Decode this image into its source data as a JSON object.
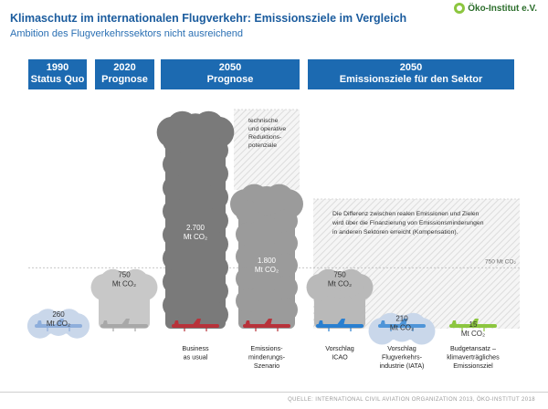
{
  "header": {
    "title": "Klimaschutz im internationalen Flugverkehr: Emissionsziele im Vergleich",
    "subtitle": "Ambition des Flugverkehrssektors nicht ausreichend",
    "logo_text": "Öko-Institut e.V."
  },
  "column_headers": [
    {
      "line1": "1990",
      "line2": "Status Quo"
    },
    {
      "line1": "2020",
      "line2": "Prognose"
    },
    {
      "line1": "2050",
      "line2": "Prognose"
    },
    {
      "line1": "2050",
      "line2": "Emissionsziele für den Sektor"
    }
  ],
  "chart_data": {
    "type": "bar",
    "categories": [
      "1990 Status Quo",
      "2020 Prognose",
      "Business as usual",
      "Emissions-minderungs-Szenario",
      "Vorschlag ICAO",
      "Vorschlag Flugverkehrs-industrie (IATA)",
      "Budgetansatz – klimaverträgliches Emissionsziel"
    ],
    "values": [
      260,
      750,
      2700,
      1800,
      750,
      210,
      15
    ],
    "unit": "Mt CO₂",
    "reference_line": {
      "value": 750,
      "label": "750 Mt CO₂"
    },
    "annotations": [
      "technische und operative Reduktionspotenziale",
      "Die Differenz zwischen realen Emissionen und Zielen wird über die Finanzierung von Emissionsminderungen in anderen Sektoren erreicht (Kompensation)."
    ]
  },
  "bars": [
    {
      "value": "260",
      "unit_line": "Mt CO₂",
      "label": [
        "",
        "",
        ""
      ],
      "cloud_color": "#c9d7ea",
      "plane_color": "#8eaedb"
    },
    {
      "value": "750",
      "unit_line": "Mt CO₂",
      "label": [
        "",
        "",
        ""
      ],
      "cloud_color": "#c8c8c8",
      "plane_color": "#a8a8a8"
    },
    {
      "value": "2.700",
      "unit_line": "Mt CO₂",
      "label": [
        "Business",
        "as usual",
        ""
      ],
      "cloud_color": "#7a7a7a",
      "plane_color": "#b8323a"
    },
    {
      "value": "1.800",
      "unit_line": "Mt CO₂",
      "label": [
        "Emissions-",
        "minderungs-",
        "Szenario"
      ],
      "cloud_color": "#9b9b9b",
      "plane_color": "#b8323a"
    },
    {
      "value": "750",
      "unit_line": "Mt CO₂",
      "label": [
        "Vorschlag",
        "ICAO",
        ""
      ],
      "cloud_color": "#b9b9b9",
      "plane_color": "#2a7fd0"
    },
    {
      "value": "210",
      "unit_line": "Mt CO₂",
      "label": [
        "Vorschlag",
        "Flugverkehrs-",
        "industrie (IATA)"
      ],
      "cloud_color": "#c9d7ea",
      "plane_color": "#4f95d8"
    },
    {
      "value": "15",
      "unit_line": "Mt CO₂",
      "label": [
        "Budgetansatz –",
        "klimaverträgliches",
        "Emissionsziel"
      ],
      "cloud_color": "#ffffff",
      "plane_color": "#8cc63f"
    }
  ],
  "annotation_left": [
    "technische",
    "und operative",
    "Reduktions-",
    "potenziale"
  ],
  "annotation_right": [
    "Die Differenz zwischen realen Emissionen und Zielen",
    "wird über die Finanzierung von Emissionsminderungen",
    "in anderen Sektoren erreicht (Kompensation)."
  ],
  "reference_label": "750 Mt CO₂",
  "source": "QUELLE: INTERNATIONAL CIVIL AVIATION ORGANIZATION 2013, ÖKO-INSTITUT 2018"
}
